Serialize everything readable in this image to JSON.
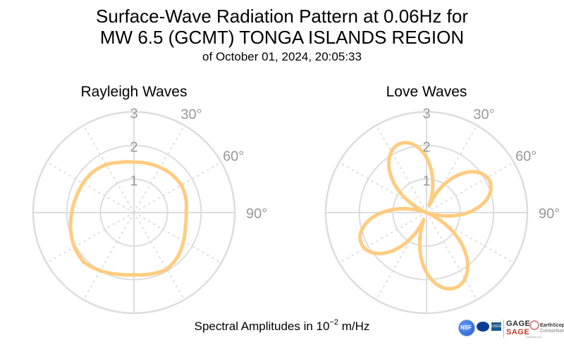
{
  "title": {
    "line1": "Surface-Wave Radiation Pattern at 0.06Hz for",
    "line2": "MW 6.5 (GCMT) TONGA ISLANDS REGION",
    "subtitle": "of October 01, 2024, 20:05:33"
  },
  "footer": {
    "prefix": "Spectral Amplitudes in 10",
    "exponent": "−2",
    "suffix": " m/Hz"
  },
  "logos": {
    "nsf": "NSF",
    "usgs": "USGS",
    "gage_line1": "GAGE",
    "gage_line2": "SAGE",
    "earthscope_line1": "EarthScope",
    "earthscope_line2": "Consortium",
    "earthscope_tag": "Operated by"
  },
  "colors": {
    "pattern": "#FFCC80",
    "grid": "#DDDDDD",
    "tick_label": "#999999"
  },
  "chart_data": [
    {
      "type": "polar-line",
      "title": "Rayleigh Waves",
      "r_ticks": [
        1,
        2,
        3
      ],
      "r_max": 3,
      "theta_direction": "clockwise",
      "theta_zero": "north",
      "theta_labels": [
        {
          "deg": 30,
          "text": "30°"
        },
        {
          "deg": 60,
          "text": "60°"
        },
        {
          "deg": 90,
          "text": "90°"
        }
      ],
      "theta_deg": [
        0,
        15,
        30,
        45,
        60,
        75,
        90,
        105,
        120,
        135,
        150,
        165,
        180,
        195,
        210,
        225,
        240,
        255,
        270,
        285,
        300,
        315,
        330,
        345
      ],
      "r": [
        1.5,
        1.52,
        1.55,
        1.6,
        1.63,
        1.6,
        1.55,
        1.58,
        1.7,
        1.85,
        1.95,
        1.9,
        1.85,
        1.9,
        2.0,
        2.1,
        2.05,
        1.95,
        1.85,
        1.78,
        1.75,
        1.72,
        1.65,
        1.55
      ],
      "color": "#FFCC80"
    },
    {
      "type": "polar-line",
      "title": "Love Waves",
      "r_ticks": [
        1,
        2,
        3
      ],
      "r_max": 3,
      "theta_direction": "clockwise",
      "theta_zero": "north",
      "theta_labels": [
        {
          "deg": 30,
          "text": "30°"
        },
        {
          "deg": 60,
          "text": "60°"
        },
        {
          "deg": 90,
          "text": "90°"
        }
      ],
      "lobes": [
        {
          "center_deg": 63,
          "peak": 2.1
        },
        {
          "center_deg": 159,
          "peak": 2.4
        },
        {
          "center_deg": 244,
          "peak": 2.15
        },
        {
          "center_deg": 339,
          "peak": 2.2
        }
      ],
      "color": "#FFCC80"
    }
  ]
}
